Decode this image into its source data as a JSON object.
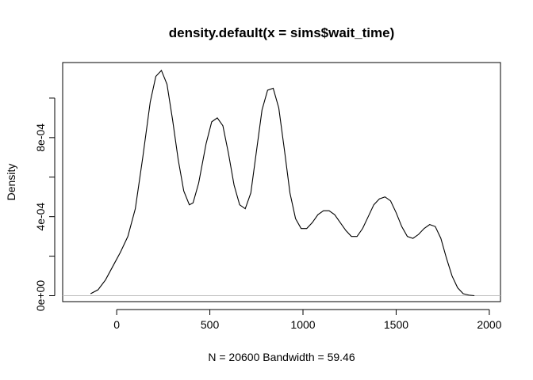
{
  "chart_data": {
    "type": "line",
    "title": "density.default(x = sims$wait_time)",
    "xlabel": "N = 20600   Bandwidth = 59.46",
    "ylabel": "Density",
    "xlim": [
      -290,
      2060
    ],
    "ylim": [
      -3e-05,
      0.00118
    ],
    "x_ticks": [
      0,
      500,
      1000,
      1500,
      2000
    ],
    "x_tick_labels": [
      "0",
      "500",
      "1000",
      "1500",
      "2000"
    ],
    "y_ticks": [
      0,
      0.0002,
      0.0004,
      0.0006,
      0.0008,
      0.001
    ],
    "y_tick_labels": [
      "0e+00",
      "",
      "4e-04",
      "",
      "8e-04",
      ""
    ],
    "grid": false,
    "baseline": 0,
    "series": [
      {
        "x": [
          -140,
          -100,
          -60,
          -20,
          20,
          60,
          100,
          140,
          180,
          210,
          240,
          270,
          300,
          330,
          360,
          390,
          410,
          440,
          480,
          510,
          540,
          570,
          600,
          630,
          660,
          690,
          720,
          750,
          780,
          810,
          840,
          870,
          900,
          930,
          960,
          990,
          1020,
          1050,
          1080,
          1110,
          1140,
          1170,
          1200,
          1230,
          1260,
          1290,
          1320,
          1350,
          1380,
          1410,
          1440,
          1470,
          1500,
          1530,
          1560,
          1590,
          1620,
          1650,
          1680,
          1710,
          1740,
          1770,
          1800,
          1830,
          1860,
          1890,
          1920
        ],
        "y": [
          1e-05,
          3e-05,
          8e-05,
          0.00015,
          0.00022,
          0.0003,
          0.00044,
          0.0007,
          0.00098,
          0.00111,
          0.00114,
          0.00107,
          0.00089,
          0.00069,
          0.00053,
          0.00046,
          0.00047,
          0.00057,
          0.00077,
          0.00088,
          0.0009,
          0.00086,
          0.00072,
          0.00056,
          0.00046,
          0.00044,
          0.00052,
          0.00073,
          0.00094,
          0.00104,
          0.00105,
          0.00095,
          0.00074,
          0.00052,
          0.00039,
          0.00034,
          0.00034,
          0.00037,
          0.00041,
          0.00043,
          0.00043,
          0.00041,
          0.00037,
          0.00033,
          0.0003,
          0.0003,
          0.00034,
          0.0004,
          0.00046,
          0.00049,
          0.0005,
          0.00048,
          0.00042,
          0.00035,
          0.0003,
          0.00029,
          0.00031,
          0.00034,
          0.00036,
          0.00035,
          0.00029,
          0.00019,
          0.0001,
          4e-05,
          1e-05,
          3e-06,
          0.0
        ]
      }
    ]
  }
}
